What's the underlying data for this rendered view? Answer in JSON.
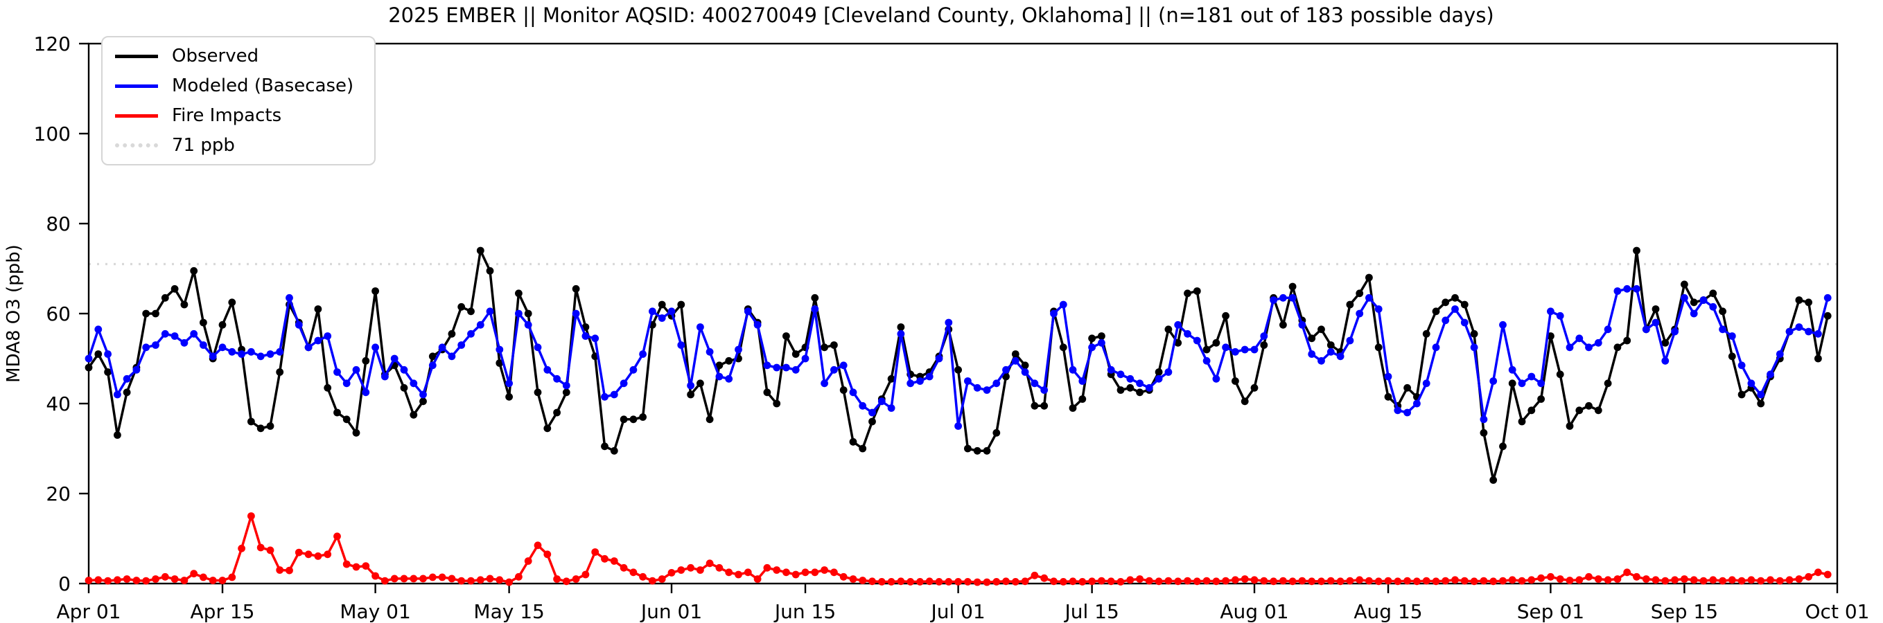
{
  "chart_data": {
    "type": "line",
    "title": "2025 EMBER || Monitor AQSID: 400270049 [Cleveland County, Oklahoma] || (n=181 out of 183 possible days)",
    "xlabel": "",
    "ylabel": "MDA8 O3 (ppb)",
    "ylim": [
      0,
      120
    ],
    "yticks": [
      0,
      20,
      40,
      60,
      80,
      100,
      120
    ],
    "n_days": 183,
    "x_start": "Apr 01",
    "x_end": "Oct 01",
    "grid": false,
    "legend_position": "upper left",
    "x_ticks": [
      {
        "label": "Apr 01",
        "day": 0
      },
      {
        "label": "Apr 15",
        "day": 14
      },
      {
        "label": "May 01",
        "day": 30
      },
      {
        "label": "May 15",
        "day": 44
      },
      {
        "label": "Jun 01",
        "day": 61
      },
      {
        "label": "Jun 15",
        "day": 75
      },
      {
        "label": "Jul 01",
        "day": 91
      },
      {
        "label": "Jul 15",
        "day": 105
      },
      {
        "label": "Aug 01",
        "day": 122
      },
      {
        "label": "Aug 15",
        "day": 136
      },
      {
        "label": "Sep 01",
        "day": 153
      },
      {
        "label": "Sep 15",
        "day": 167
      },
      {
        "label": "Oct 01",
        "day": 183
      }
    ],
    "reference_line": {
      "label": "71 ppb",
      "value": 71,
      "color": "#d9d9d9",
      "style": "dotted"
    },
    "series": [
      {
        "name": "Observed",
        "color": "#000000",
        "values": [
          48,
          51,
          47,
          33,
          42.5,
          48,
          60,
          60,
          63.5,
          65.5,
          62,
          69.5,
          58,
          50,
          57.5,
          62.5,
          52,
          36,
          34.5,
          35,
          47,
          62,
          58,
          52.5,
          61,
          43.5,
          38,
          36.5,
          33.5,
          49.5,
          65,
          46.5,
          48.5,
          43.5,
          37.5,
          40.5,
          50.5,
          52,
          55.5,
          61.5,
          60.5,
          74,
          69.5,
          49,
          41.5,
          64.5,
          60,
          42.5,
          34.5,
          38,
          42.5,
          65.5,
          57,
          50.5,
          30.5,
          29.5,
          36.5,
          36.5,
          37,
          57.5,
          62,
          59.5,
          62,
          42,
          44.5,
          36.5,
          48.5,
          49.5,
          50,
          61,
          58,
          42.5,
          40,
          55,
          51,
          52.5,
          63.5,
          52.5,
          53,
          43,
          31.5,
          30,
          36,
          41,
          45.5,
          57,
          46.5,
          46,
          47,
          50.5,
          56.5,
          47.5,
          30,
          29.5,
          29.5,
          33.5,
          46,
          51,
          48.5,
          39.5,
          39.5,
          60.5,
          52.5,
          39,
          41,
          54.5,
          55,
          46.5,
          43,
          43.5,
          42.5,
          43,
          47,
          56.5,
          53.5,
          64.5,
          65,
          52,
          53.5,
          59.5,
          45,
          40.5,
          43.5,
          53,
          63.5,
          57.5,
          66,
          58.5,
          54.5,
          56.5,
          53,
          51.5,
          62,
          64.5,
          68,
          52.5,
          41.5,
          39.5,
          43.5,
          41.5,
          55.5,
          60.5,
          62.5,
          63.5,
          62,
          55.5,
          33.5,
          23,
          30.5,
          44.5,
          36,
          38.5,
          41,
          55,
          46.5,
          35,
          38.5,
          39.5,
          38.5,
          44.5,
          52.5,
          54,
          74,
          56.5,
          61,
          53.5,
          56.5,
          66.5,
          62.5,
          63,
          64.5,
          60.5,
          50.5,
          42,
          43.5,
          40,
          46,
          50,
          56,
          63,
          62.5,
          50,
          59.5
        ]
      },
      {
        "name": "Modeled (Basecase)",
        "color": "#0000ff",
        "values": [
          50,
          56.5,
          51,
          42,
          45.5,
          47.5,
          52.5,
          53,
          55.5,
          55,
          53.5,
          55.5,
          53,
          50.5,
          52.5,
          51.5,
          51,
          51.5,
          50.5,
          51,
          51.5,
          63.5,
          57.5,
          52.5,
          54,
          55,
          47,
          44.5,
          47.5,
          42.5,
          52.5,
          46,
          50,
          47.5,
          44.5,
          42,
          48.5,
          52.5,
          50.5,
          53,
          55.5,
          57.5,
          60.5,
          52,
          44.5,
          60,
          57.5,
          52.5,
          47.5,
          45.5,
          44,
          60,
          55,
          54.5,
          41.5,
          42,
          44.5,
          47.5,
          51,
          60.5,
          59,
          60.5,
          53,
          44,
          57,
          51.5,
          46,
          45.5,
          52,
          60.5,
          57.5,
          48.5,
          48,
          48,
          47.5,
          50,
          61,
          44.5,
          47.5,
          48.5,
          42.5,
          39.5,
          38,
          40.5,
          39,
          55.5,
          44.5,
          45,
          46,
          50,
          58,
          35,
          45,
          43.5,
          43,
          44.5,
          47.5,
          49.5,
          47,
          44.5,
          43,
          60,
          62,
          47.5,
          45,
          52.5,
          53.5,
          47.5,
          46.5,
          45.5,
          44.5,
          43.5,
          45.5,
          47,
          57.5,
          55.5,
          54,
          49.5,
          45.5,
          52.5,
          51.5,
          52,
          52,
          55,
          63,
          63.5,
          63.5,
          57.5,
          51,
          49.5,
          51.5,
          50.5,
          54,
          60,
          63.5,
          61,
          46,
          38.5,
          38,
          40,
          44.5,
          52.5,
          58.5,
          61,
          58,
          52.5,
          36.5,
          45,
          57.5,
          47.5,
          44.5,
          46,
          44.5,
          60.5,
          59.5,
          52.5,
          54.5,
          52.5,
          53.5,
          56.5,
          65,
          65.5,
          65.5,
          56.5,
          58,
          49.5,
          56,
          63.5,
          60,
          63,
          61.5,
          56.5,
          55,
          48.5,
          44.5,
          42,
          46.5,
          51,
          56,
          57,
          56,
          55.5,
          63.5
        ]
      },
      {
        "name": "Fire Impacts",
        "color": "#ff0000",
        "values": [
          0.7,
          0.8,
          0.6,
          0.8,
          1,
          0.7,
          0.6,
          1,
          1.5,
          1,
          0.7,
          2.2,
          1.4,
          0.7,
          0.7,
          1.4,
          7.8,
          15,
          8,
          7.4,
          3,
          2.9,
          6.9,
          6.5,
          6.1,
          6.5,
          10.5,
          4.3,
          3.7,
          3.9,
          1.7,
          0.6,
          1.1,
          1.1,
          1.1,
          1.1,
          1.4,
          1.4,
          1.1,
          0.6,
          0.6,
          0.8,
          1.1,
          0.8,
          0.3,
          1.5,
          5,
          8.5,
          6.5,
          1,
          0.5,
          1,
          2,
          7,
          5.5,
          5,
          3.5,
          2.5,
          1.5,
          0.6,
          1,
          2.4,
          3,
          3.5,
          3,
          4.5,
          3.5,
          2.5,
          2,
          2.5,
          1,
          3.5,
          3,
          2.5,
          2,
          2.5,
          2.5,
          3,
          2.5,
          1.5,
          1,
          0.7,
          0.5,
          0.4,
          0.4,
          0.5,
          0.4,
          0.4,
          0.5,
          0.4,
          0.4,
          0.4,
          0.4,
          0.3,
          0.3,
          0.4,
          0.5,
          0.4,
          0.5,
          1.8,
          1.2,
          0.5,
          0.4,
          0.5,
          0.4,
          0.5,
          0.6,
          0.5,
          0.4,
          0.8,
          1,
          0.6,
          0.5,
          0.6,
          0.5,
          0.6,
          0.5,
          0.6,
          0.5,
          0.6,
          0.8,
          1,
          0.8,
          0.6,
          0.5,
          0.6,
          0.5,
          0.6,
          0.5,
          0.5,
          0.6,
          0.5,
          0.6,
          0.8,
          0.6,
          0.5,
          0.6,
          0.5,
          0.6,
          0.5,
          0.6,
          0.5,
          0.6,
          0.8,
          0.6,
          0.5,
          0.6,
          0.5,
          0.6,
          0.8,
          0.6,
          0.8,
          1.2,
          1.5,
          1,
          0.7,
          0.8,
          1.5,
          1,
          0.8,
          1,
          2.5,
          1.5,
          1,
          0.8,
          0.6,
          0.8,
          1,
          0.8,
          0.6,
          0.8,
          0.6,
          0.8,
          0.6,
          0.8,
          0.6,
          0.8,
          0.6,
          0.8,
          1,
          1.5,
          2.5,
          2
        ]
      }
    ]
  }
}
